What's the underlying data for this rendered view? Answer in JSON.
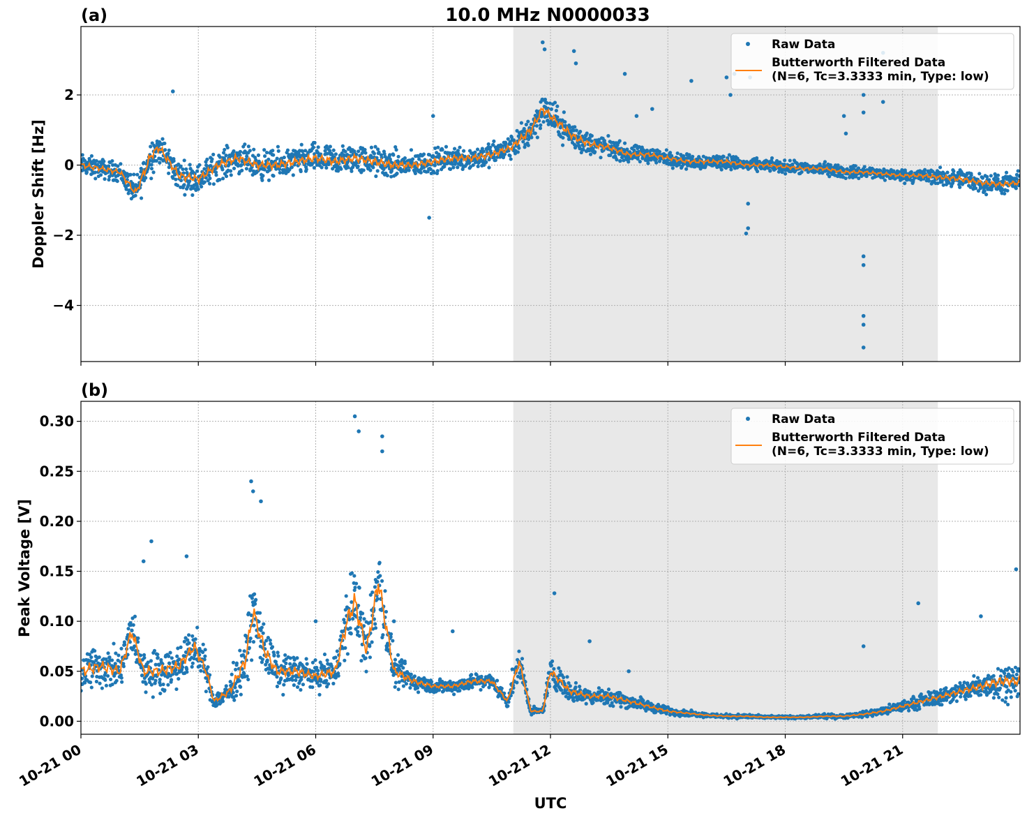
{
  "figure": {
    "title": "10.0 MHz N0000033",
    "xlabel": "UTC"
  },
  "chart_data": [
    {
      "type": "scatter",
      "panel_label": "(a)",
      "ylabel": "Doppler Shift [Hz]",
      "ylim": [
        -5.6,
        3.95
      ],
      "yticks": [
        2,
        0,
        -2,
        -4
      ],
      "ytick_labels": [
        "2",
        "0",
        "−2",
        "−4"
      ],
      "xlim_hours": [
        0,
        24
      ],
      "shaded_span_hours": [
        11.05,
        21.9
      ],
      "grid": true,
      "legend_position": "top-right",
      "series": [
        {
          "name": "Raw Data",
          "kind": "scatter",
          "color": "#1f77b4",
          "x_hours": [
            0,
            0.5,
            1.0,
            1.4,
            1.8,
            2.0,
            2.5,
            3.0,
            3.5,
            4.0,
            4.5,
            5.0,
            5.5,
            6.0,
            6.5,
            7.0,
            7.5,
            8.0,
            8.5,
            9.0,
            9.5,
            10.0,
            10.5,
            11.0,
            11.5,
            11.8,
            12.2,
            12.6,
            13.0,
            13.5,
            14.0,
            14.5,
            15.0,
            15.5,
            16.0,
            16.5,
            17.0,
            17.5,
            18.0,
            18.5,
            19.0,
            19.5,
            20.0,
            20.5,
            21.0,
            21.5,
            22.0,
            22.5,
            23.0,
            23.5,
            24.0
          ],
          "y": [
            0.0,
            -0.1,
            -0.2,
            -0.8,
            0.3,
            0.5,
            -0.3,
            -0.4,
            0.0,
            0.2,
            0.0,
            0.0,
            0.1,
            0.2,
            0.1,
            0.2,
            0.1,
            0.0,
            0.0,
            0.1,
            0.2,
            0.2,
            0.3,
            0.5,
            1.0,
            1.6,
            1.2,
            0.8,
            0.6,
            0.5,
            0.3,
            0.3,
            0.2,
            0.1,
            0.1,
            0.1,
            0.0,
            0.0,
            -0.05,
            -0.1,
            -0.1,
            -0.2,
            -0.2,
            -0.25,
            -0.3,
            -0.3,
            -0.35,
            -0.4,
            -0.5,
            -0.55,
            -0.5
          ],
          "spread": [
            0.45,
            0.4,
            0.4,
            0.6,
            0.8,
            0.6,
            0.6,
            0.6,
            0.6,
            0.6,
            0.6,
            0.6,
            0.6,
            0.6,
            0.6,
            0.6,
            0.6,
            0.6,
            0.5,
            0.5,
            0.5,
            0.5,
            0.5,
            0.5,
            0.7,
            0.7,
            0.6,
            0.6,
            0.5,
            0.4,
            0.35,
            0.35,
            0.3,
            0.3,
            0.3,
            0.3,
            0.25,
            0.25,
            0.25,
            0.25,
            0.25,
            0.25,
            0.25,
            0.25,
            0.25,
            0.3,
            0.35,
            0.4,
            0.4,
            0.4,
            0.4
          ],
          "outliers": [
            [
              11.8,
              3.5
            ],
            [
              11.85,
              3.3
            ],
            [
              12.6,
              3.25
            ],
            [
              12.65,
              2.9
            ],
            [
              13.9,
              2.6
            ],
            [
              15.6,
              2.4
            ],
            [
              16.5,
              2.5
            ],
            [
              16.6,
              2.0
            ],
            [
              17.0,
              -1.95
            ],
            [
              17.05,
              -1.8
            ],
            [
              17.05,
              -1.1
            ],
            [
              19.5,
              1.4
            ],
            [
              19.55,
              0.9
            ],
            [
              20.0,
              2.0
            ],
            [
              20.0,
              1.5
            ],
            [
              20.0,
              -2.6
            ],
            [
              20.0,
              -2.85
            ],
            [
              20.0,
              -4.3
            ],
            [
              20.0,
              -4.55
            ],
            [
              20.0,
              -5.2
            ],
            [
              20.5,
              3.2
            ],
            [
              20.5,
              2.9
            ],
            [
              20.5,
              1.8
            ],
            [
              9.0,
              1.4
            ],
            [
              8.9,
              -1.5
            ],
            [
              2.35,
              2.1
            ],
            [
              16.7,
              2.6
            ],
            [
              17.1,
              2.5
            ],
            [
              14.2,
              1.4
            ],
            [
              14.6,
              1.6
            ]
          ]
        },
        {
          "name": "Butterworth Filtered Data\n(N=6, Tc=3.3333 min, Type: low)",
          "kind": "line",
          "color": "#ff7f0e",
          "x_hours": [
            0,
            0.5,
            1.0,
            1.4,
            1.8,
            2.0,
            2.5,
            3.0,
            3.5,
            4.0,
            4.5,
            5.0,
            5.5,
            6.0,
            6.5,
            7.0,
            7.5,
            8.0,
            8.5,
            9.0,
            9.5,
            10.0,
            10.5,
            11.0,
            11.5,
            11.8,
            12.2,
            12.6,
            13.0,
            13.5,
            14.0,
            14.5,
            15.0,
            15.5,
            16.0,
            16.5,
            17.0,
            17.5,
            18.0,
            18.5,
            19.0,
            19.5,
            20.0,
            20.5,
            21.0,
            21.5,
            22.0,
            22.5,
            23.0,
            23.5,
            24.0
          ],
          "y": [
            0.0,
            -0.1,
            -0.2,
            -0.8,
            0.3,
            0.5,
            -0.3,
            -0.4,
            0.0,
            0.2,
            0.0,
            0.0,
            0.1,
            0.2,
            0.1,
            0.2,
            0.1,
            0.0,
            0.0,
            0.1,
            0.2,
            0.2,
            0.3,
            0.5,
            1.0,
            1.6,
            1.2,
            0.8,
            0.6,
            0.5,
            0.3,
            0.3,
            0.2,
            0.1,
            0.1,
            0.1,
            0.0,
            0.0,
            -0.05,
            -0.1,
            -0.1,
            -0.2,
            -0.2,
            -0.25,
            -0.3,
            -0.3,
            -0.35,
            -0.4,
            -0.5,
            -0.55,
            -0.5
          ]
        }
      ]
    },
    {
      "type": "scatter",
      "panel_label": "(b)",
      "ylabel": "Peak Voltage [V]",
      "ylim": [
        -0.013,
        0.32
      ],
      "yticks": [
        0.0,
        0.05,
        0.1,
        0.15,
        0.2,
        0.25,
        0.3
      ],
      "ytick_labels": [
        "0.00",
        "0.05",
        "0.10",
        "0.15",
        "0.20",
        "0.25",
        "0.30"
      ],
      "xlim_hours": [
        0,
        24
      ],
      "xticks_hours": [
        0,
        3,
        6,
        9,
        12,
        15,
        18,
        21
      ],
      "xtick_labels": [
        "10-21 00",
        "10-21 03",
        "10-21 06",
        "10-21 09",
        "10-21 12",
        "10-21 15",
        "10-21 18",
        "10-21 21"
      ],
      "shaded_span_hours": [
        11.05,
        21.9
      ],
      "grid": true,
      "legend_position": "top-right",
      "series": [
        {
          "name": "Raw Data",
          "kind": "scatter",
          "color": "#1f77b4",
          "x_hours": [
            0,
            0.5,
            1.0,
            1.3,
            1.6,
            2.0,
            2.5,
            2.9,
            3.2,
            3.4,
            3.8,
            4.2,
            4.4,
            4.7,
            5.0,
            5.5,
            6.0,
            6.5,
            6.8,
            7.0,
            7.3,
            7.6,
            8.0,
            8.5,
            9.0,
            9.5,
            10.0,
            10.5,
            10.9,
            11.2,
            11.5,
            11.8,
            12.0,
            12.5,
            13.0,
            13.5,
            14.0,
            14.5,
            15.0,
            15.5,
            16.0,
            16.5,
            17.0,
            17.5,
            18.0,
            18.5,
            19.0,
            19.5,
            20.0,
            20.5,
            21.0,
            21.5,
            22.0,
            22.5,
            23.0,
            23.5,
            24.0
          ],
          "y": [
            0.05,
            0.055,
            0.05,
            0.09,
            0.05,
            0.05,
            0.055,
            0.075,
            0.05,
            0.02,
            0.03,
            0.06,
            0.11,
            0.07,
            0.05,
            0.05,
            0.045,
            0.05,
            0.1,
            0.12,
            0.07,
            0.14,
            0.05,
            0.04,
            0.035,
            0.035,
            0.04,
            0.04,
            0.02,
            0.06,
            0.01,
            0.01,
            0.05,
            0.03,
            0.025,
            0.025,
            0.02,
            0.015,
            0.01,
            0.008,
            0.006,
            0.005,
            0.005,
            0.004,
            0.004,
            0.004,
            0.005,
            0.005,
            0.007,
            0.01,
            0.015,
            0.02,
            0.025,
            0.03,
            0.035,
            0.04,
            0.04
          ],
          "spread": [
            0.035,
            0.03,
            0.03,
            0.035,
            0.03,
            0.03,
            0.03,
            0.03,
            0.025,
            0.01,
            0.02,
            0.04,
            0.05,
            0.04,
            0.025,
            0.025,
            0.02,
            0.025,
            0.05,
            0.06,
            0.04,
            0.06,
            0.025,
            0.015,
            0.01,
            0.01,
            0.012,
            0.012,
            0.01,
            0.025,
            0.005,
            0.005,
            0.02,
            0.015,
            0.012,
            0.012,
            0.01,
            0.008,
            0.006,
            0.004,
            0.003,
            0.003,
            0.003,
            0.002,
            0.002,
            0.002,
            0.003,
            0.003,
            0.004,
            0.006,
            0.008,
            0.01,
            0.012,
            0.015,
            0.02,
            0.025,
            0.025
          ],
          "outliers": [
            [
              7.0,
              0.305
            ],
            [
              7.1,
              0.29
            ],
            [
              7.7,
              0.285
            ],
            [
              7.7,
              0.27
            ],
            [
              4.35,
              0.24
            ],
            [
              4.4,
              0.23
            ],
            [
              4.6,
              0.22
            ],
            [
              1.8,
              0.18
            ],
            [
              2.7,
              0.165
            ],
            [
              1.6,
              0.16
            ],
            [
              23.9,
              0.152
            ],
            [
              12.1,
              0.128
            ],
            [
              21.4,
              0.118
            ],
            [
              20.0,
              0.075
            ],
            [
              13.0,
              0.08
            ],
            [
              14.0,
              0.05
            ],
            [
              23.0,
              0.105
            ],
            [
              6.0,
              0.1
            ],
            [
              8.0,
              0.1
            ],
            [
              9.5,
              0.09
            ]
          ]
        },
        {
          "name": "Butterworth Filtered Data\n(N=6, Tc=3.3333 min, Type: low)",
          "kind": "line",
          "color": "#ff7f0e",
          "x_hours": [
            0,
            0.5,
            1.0,
            1.3,
            1.6,
            2.0,
            2.5,
            2.9,
            3.2,
            3.4,
            3.8,
            4.2,
            4.4,
            4.7,
            5.0,
            5.5,
            6.0,
            6.5,
            6.8,
            7.0,
            7.3,
            7.6,
            8.0,
            8.5,
            9.0,
            9.5,
            10.0,
            10.5,
            10.9,
            11.2,
            11.5,
            11.8,
            12.0,
            12.5,
            13.0,
            13.5,
            14.0,
            14.5,
            15.0,
            15.5,
            16.0,
            16.5,
            17.0,
            17.5,
            18.0,
            18.5,
            19.0,
            19.5,
            20.0,
            20.5,
            21.0,
            21.5,
            22.0,
            22.5,
            23.0,
            23.5,
            24.0
          ],
          "y": [
            0.05,
            0.055,
            0.05,
            0.09,
            0.05,
            0.05,
            0.055,
            0.075,
            0.05,
            0.02,
            0.03,
            0.06,
            0.11,
            0.07,
            0.05,
            0.05,
            0.045,
            0.05,
            0.1,
            0.12,
            0.07,
            0.14,
            0.05,
            0.04,
            0.035,
            0.035,
            0.04,
            0.04,
            0.02,
            0.06,
            0.01,
            0.01,
            0.05,
            0.03,
            0.025,
            0.025,
            0.02,
            0.015,
            0.01,
            0.008,
            0.006,
            0.005,
            0.005,
            0.004,
            0.004,
            0.004,
            0.005,
            0.005,
            0.007,
            0.01,
            0.015,
            0.02,
            0.025,
            0.03,
            0.035,
            0.04,
            0.04
          ]
        }
      ]
    }
  ]
}
